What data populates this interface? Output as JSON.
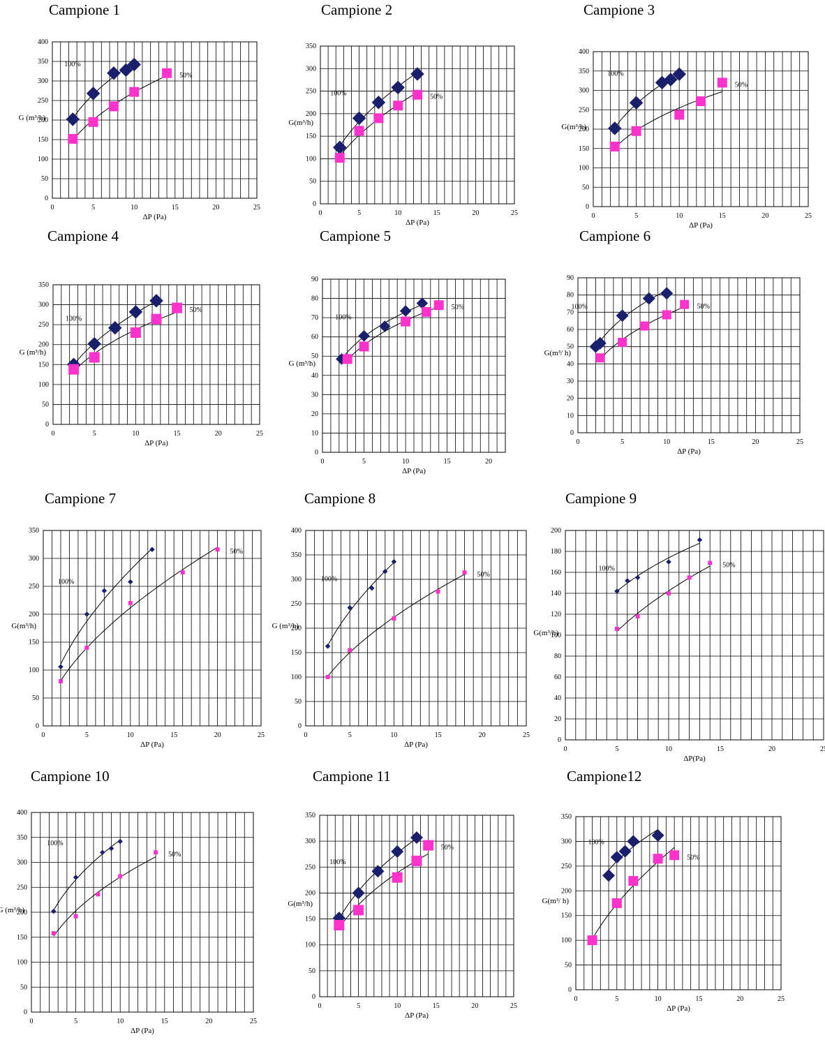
{
  "colors": {
    "series_100": "#1a1f6b",
    "series_50": "#ff33cc",
    "grid": "#000000"
  },
  "chart_data": [
    {
      "type": "scatter",
      "title": "Campione 1",
      "xlabel": "ΔP (Pa)",
      "ylabel": "G (m³/h)",
      "xlim": [
        0,
        25
      ],
      "ylim": [
        0,
        400
      ],
      "xstep": 5,
      "ystep": 50,
      "grid": true,
      "series": [
        {
          "name": "100%",
          "x": [
            2.5,
            5,
            7.5,
            9,
            10
          ],
          "y": [
            202,
            268,
            320,
            328,
            342
          ]
        },
        {
          "name": "50%",
          "x": [
            2.5,
            5,
            7.5,
            10,
            14
          ],
          "y": [
            152,
            195,
            235,
            272,
            320
          ]
        }
      ]
    },
    {
      "type": "scatter",
      "title": "Campione 2",
      "xlabel": "ΔP (Pa)",
      "ylabel": "G(m³/h)",
      "xlim": [
        0,
        25
      ],
      "ylim": [
        0,
        350
      ],
      "xstep": 5,
      "ystep": 50,
      "grid": true,
      "series": [
        {
          "name": "100%",
          "x": [
            2.5,
            5,
            7.5,
            10,
            12.5
          ],
          "y": [
            125,
            190,
            225,
            258,
            288
          ]
        },
        {
          "name": "50%",
          "x": [
            2.5,
            5,
            7.5,
            10,
            12.5
          ],
          "y": [
            102,
            162,
            190,
            218,
            242
          ]
        }
      ]
    },
    {
      "type": "scatter",
      "title": "Campione 3",
      "xlabel": "ΔP (Pa)",
      "ylabel": "G(m³/h)",
      "xlim": [
        0,
        25
      ],
      "ylim": [
        0,
        400
      ],
      "xstep": 5,
      "ystep": 50,
      "grid": true,
      "series": [
        {
          "name": "100%",
          "x": [
            2.5,
            5,
            8,
            9,
            10
          ],
          "y": [
            202,
            268,
            320,
            328,
            342
          ]
        },
        {
          "name": "50%",
          "x": [
            2.5,
            5,
            10,
            12.5,
            15
          ],
          "y": [
            155,
            195,
            237,
            272,
            320
          ]
        }
      ]
    },
    {
      "type": "scatter",
      "title": "Campione 4",
      "xlabel": "ΔP (Pa)",
      "ylabel": "G (m³/h)",
      "xlim": [
        0,
        25
      ],
      "ylim": [
        0,
        350
      ],
      "xstep": 5,
      "ystep": 50,
      "grid": true,
      "series": [
        {
          "name": "100%",
          "x": [
            2.5,
            5,
            7.5,
            10,
            12.5
          ],
          "y": [
            150,
            202,
            242,
            282,
            310
          ]
        },
        {
          "name": "50%",
          "x": [
            2.5,
            5,
            10,
            12.5,
            15
          ],
          "y": [
            138,
            168,
            230,
            264,
            292
          ]
        }
      ]
    },
    {
      "type": "scatter",
      "title": "Campione 5",
      "xlabel": "ΔP (Pa)",
      "ylabel": "G (m³/h)",
      "xlim": [
        0,
        22
      ],
      "ylim": [
        0,
        90
      ],
      "xstep": 5,
      "ystep": 10,
      "grid": true,
      "series": [
        {
          "name": "100%",
          "x": [
            2.3,
            5,
            7.5,
            10,
            12
          ],
          "y": [
            48.5,
            60.5,
            65.5,
            73.5,
            77.5
          ]
        },
        {
          "name": "50%",
          "x": [
            3,
            5,
            10,
            12.5,
            14
          ],
          "y": [
            48.5,
            55,
            68,
            73,
            76.5
          ]
        }
      ]
    },
    {
      "type": "scatter",
      "title": "Campione 6",
      "xlabel": "ΔP (Pa)",
      "ylabel": "G(m³/ h)",
      "xlim": [
        0,
        25
      ],
      "ylim": [
        0,
        90
      ],
      "xstep": 5,
      "ystep": 10,
      "grid": true,
      "series": [
        {
          "name": "100%",
          "x": [
            2,
            2.5,
            5,
            8,
            10
          ],
          "y": [
            50,
            52,
            68,
            78,
            81
          ]
        },
        {
          "name": "50%",
          "x": [
            2.5,
            5,
            7.5,
            10,
            12
          ],
          "y": [
            43.5,
            52.5,
            62,
            68.5,
            74.5
          ]
        }
      ]
    },
    {
      "type": "scatter",
      "title": "Campione 7",
      "xlabel": "ΔP (Pa)",
      "ylabel": "G(m³/h)",
      "xlim": [
        0,
        25
      ],
      "ylim": [
        0,
        350
      ],
      "xstep": 5,
      "ystep": 50,
      "grid": true,
      "series": [
        {
          "name": "100%",
          "x": [
            2,
            5,
            7,
            10,
            12.5
          ],
          "y": [
            106,
            200,
            242,
            258,
            316
          ]
        },
        {
          "name": "50%",
          "x": [
            2,
            5,
            10,
            16,
            20
          ],
          "y": [
            80,
            140,
            220,
            275,
            316
          ]
        }
      ]
    },
    {
      "type": "scatter",
      "title": "Campione 8",
      "xlabel": "ΔP (Pa)",
      "ylabel": "G (m³/h)",
      "xlim": [
        0,
        25
      ],
      "ylim": [
        0,
        400
      ],
      "xstep": 5,
      "ystep": 50,
      "grid": true,
      "series": [
        {
          "name": "100%",
          "x": [
            2.5,
            5,
            7.5,
            9,
            10
          ],
          "y": [
            163,
            242,
            282,
            316,
            336
          ]
        },
        {
          "name": "50%",
          "x": [
            2.5,
            5,
            10,
            15,
            18
          ],
          "y": [
            100,
            155,
            220,
            275,
            314
          ]
        }
      ]
    },
    {
      "type": "scatter",
      "title": "Campione 9",
      "xlabel": "ΔP(Pa)",
      "ylabel": "G(m³/h)",
      "xlim": [
        0,
        25
      ],
      "ylim": [
        0,
        200
      ],
      "xstep": 5,
      "ystep": 20,
      "grid": true,
      "series": [
        {
          "name": "100%",
          "x": [
            5,
            6,
            7,
            10,
            13
          ],
          "y": [
            142,
            152,
            155,
            170,
            191
          ]
        },
        {
          "name": "50%",
          "x": [
            5,
            7,
            10,
            12,
            14
          ],
          "y": [
            106,
            118,
            140,
            155,
            169
          ]
        }
      ]
    },
    {
      "type": "scatter",
      "title": "Campione 10",
      "xlabel": "ΔP (Pa)",
      "ylabel": "G (m³/h)",
      "xlim": [
        0,
        25
      ],
      "ylim": [
        0,
        400
      ],
      "xstep": 5,
      "ystep": 50,
      "grid": true,
      "series": [
        {
          "name": "100%",
          "x": [
            2.5,
            5,
            8,
            9,
            10
          ],
          "y": [
            202,
            270,
            320,
            328,
            342
          ]
        },
        {
          "name": "50%",
          "x": [
            2.5,
            5,
            7.5,
            10,
            14
          ],
          "y": [
            158,
            192,
            236,
            272,
            320
          ]
        }
      ]
    },
    {
      "type": "scatter",
      "title": "Campione 11",
      "xlabel": "ΔP (Pa)",
      "ylabel": "G(m³/h)",
      "xlim": [
        0,
        25
      ],
      "ylim": [
        0,
        350
      ],
      "xstep": 5,
      "ystep": 50,
      "grid": true,
      "series": [
        {
          "name": "100%",
          "x": [
            2.5,
            5,
            7.5,
            10,
            12.5
          ],
          "y": [
            152,
            200,
            242,
            280,
            307
          ]
        },
        {
          "name": "50%",
          "x": [
            2.5,
            5,
            10,
            12.5,
            14
          ],
          "y": [
            138,
            167,
            230,
            262,
            292
          ]
        }
      ]
    },
    {
      "type": "scatter",
      "title": "Campione12",
      "xlabel": "ΔP (Pa)",
      "ylabel": "G(m³/ h)",
      "xlim": [
        0,
        25
      ],
      "ylim": [
        0,
        350
      ],
      "xstep": 5,
      "ystep": 50,
      "grid": true,
      "series": [
        {
          "name": "100%",
          "x": [
            4,
            5,
            6,
            7,
            10
          ],
          "y": [
            231,
            268,
            280,
            300,
            312
          ]
        },
        {
          "name": "50%",
          "x": [
            2,
            5,
            7,
            10,
            12
          ],
          "y": [
            100,
            175,
            220,
            265,
            272
          ]
        }
      ]
    }
  ]
}
